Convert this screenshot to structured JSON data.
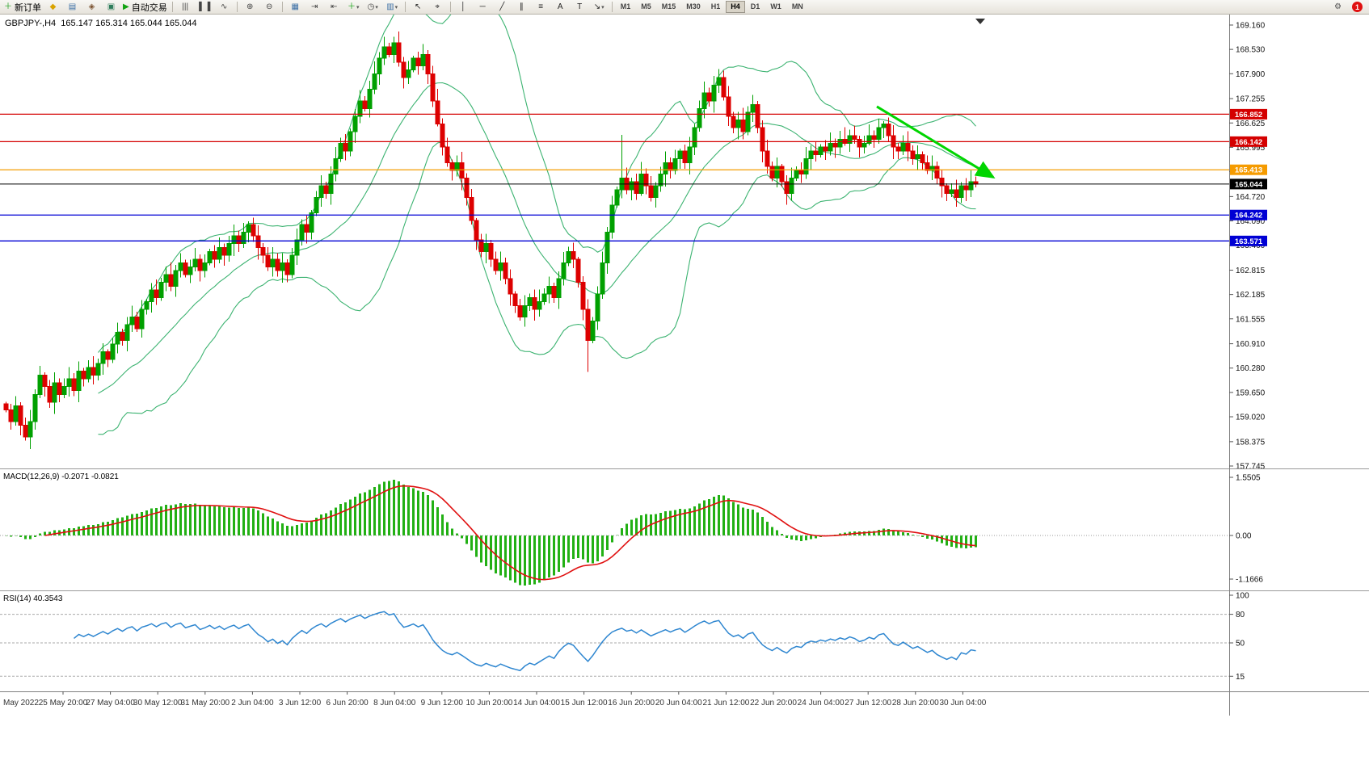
{
  "toolbar": {
    "new_order_label": "新订单",
    "autotrading_label": "自动交易",
    "active_timeframe": "H4",
    "timeframes": [
      "M1",
      "M5",
      "M15",
      "M30",
      "H1",
      "H4",
      "D1",
      "W1",
      "MN"
    ],
    "notification_count": "1",
    "buttons": [
      {
        "type": "icon",
        "name": "new-order-button",
        "icon": "new-order-icon",
        "glyph": "＋",
        "color": "#1a9e1a",
        "label": "新订单"
      },
      {
        "type": "icon",
        "name": "market-watch-button",
        "icon": "market-watch-icon",
        "glyph": "◆",
        "color": "#d9a300"
      },
      {
        "type": "icon",
        "name": "data-window-button",
        "icon": "data-window-icon",
        "glyph": "▤",
        "color": "#3a6ea5"
      },
      {
        "type": "icon",
        "name": "navigator-button",
        "icon": "navigator-icon",
        "glyph": "◈",
        "color": "#7a5230"
      },
      {
        "type": "icon",
        "name": "terminal-button",
        "icon": "terminal-icon",
        "glyph": "▣",
        "color": "#2e7d5b"
      },
      {
        "type": "icon",
        "name": "autotrading-button",
        "icon": "autotrading-play-icon",
        "glyph": "▶",
        "color": "#12a312",
        "label": "自动交易"
      },
      {
        "type": "sep"
      },
      {
        "type": "icon",
        "name": "bar-chart-button",
        "icon": "bar-chart-icon",
        "glyph": "|||",
        "color": "#444444"
      },
      {
        "type": "icon",
        "name": "candlestick-chart-button",
        "icon": "candlestick-chart-icon",
        "glyph": "▌▐",
        "color": "#444444"
      },
      {
        "type": "icon",
        "name": "line-chart-button",
        "icon": "line-chart-icon",
        "glyph": "∿",
        "color": "#444444"
      },
      {
        "type": "sep"
      },
      {
        "type": "icon",
        "name": "zoom-in-button",
        "icon": "zoom-in-icon",
        "glyph": "⊕",
        "color": "#444444"
      },
      {
        "type": "icon",
        "name": "zoom-out-button",
        "icon": "zoom-out-icon",
        "glyph": "⊖",
        "color": "#444444"
      },
      {
        "type": "sep"
      },
      {
        "type": "icon",
        "name": "tile-windows-button",
        "icon": "tile-windows-icon",
        "glyph": "▦",
        "color": "#3a6ea5"
      },
      {
        "type": "icon",
        "name": "auto-scroll-button",
        "icon": "auto-scroll-icon",
        "glyph": "⇥",
        "color": "#444444"
      },
      {
        "type": "icon",
        "name": "chart-shift-button",
        "icon": "chart-shift-icon",
        "glyph": "⇤",
        "color": "#444444"
      },
      {
        "type": "icon",
        "name": "indicators-button",
        "icon": "indicators-plus-icon",
        "glyph": "＋",
        "color": "#12a312",
        "caret": true
      },
      {
        "type": "icon",
        "name": "periods-button",
        "icon": "periods-clock-icon",
        "glyph": "◷",
        "color": "#444444",
        "caret": true
      },
      {
        "type": "icon",
        "name": "templates-button",
        "icon": "templates-icon",
        "glyph": "▥",
        "color": "#3a6ea5",
        "caret": true
      },
      {
        "type": "sep"
      },
      {
        "type": "icon",
        "name": "cursor-button",
        "icon": "cursor-icon",
        "glyph": "↖",
        "color": "#222222"
      },
      {
        "type": "icon",
        "name": "crosshair-button",
        "icon": "crosshair-icon",
        "glyph": "⌖",
        "color": "#222222"
      },
      {
        "type": "sep"
      },
      {
        "type": "icon",
        "name": "vertical-line-button",
        "icon": "vertical-line-icon",
        "glyph": "│",
        "color": "#222222"
      },
      {
        "type": "icon",
        "name": "horizontal-line-button",
        "icon": "horizontal-line-icon",
        "glyph": "─",
        "color": "#222222"
      },
      {
        "type": "icon",
        "name": "trendline-button",
        "icon": "trendline-icon",
        "glyph": "╱",
        "color": "#222222"
      },
      {
        "type": "icon",
        "name": "equidistant-channel-button",
        "icon": "channel-icon",
        "glyph": "∥",
        "color": "#222222"
      },
      {
        "type": "icon",
        "name": "fibonacci-button",
        "icon": "fibonacci-icon",
        "glyph": "≡",
        "color": "#222222"
      },
      {
        "type": "icon",
        "name": "text-button",
        "icon": "text-icon",
        "glyph": "A",
        "color": "#222222"
      },
      {
        "type": "icon",
        "name": "label-button",
        "icon": "label-icon",
        "glyph": "T",
        "color": "#222222"
      },
      {
        "type": "icon",
        "name": "arrows-button",
        "icon": "arrows-icon",
        "glyph": "↘",
        "color": "#222222",
        "caret": true
      },
      {
        "type": "sep"
      },
      {
        "type": "tf",
        "label": "M1"
      },
      {
        "type": "tf",
        "label": "M5"
      },
      {
        "type": "tf",
        "label": "M15"
      },
      {
        "type": "tf",
        "label": "M30"
      },
      {
        "type": "tf",
        "label": "H1"
      },
      {
        "type": "tf",
        "label": "H4"
      },
      {
        "type": "tf",
        "label": "D1"
      },
      {
        "type": "tf",
        "label": "W1"
      },
      {
        "type": "tf",
        "label": "MN"
      },
      {
        "type": "spacer"
      },
      {
        "type": "icon",
        "name": "settings-button",
        "icon": "gear-icon",
        "glyph": "⚙",
        "color": "#555555"
      },
      {
        "type": "badge",
        "name": "notification-badge",
        "label": "1"
      }
    ]
  },
  "chart": {
    "header": "GBPJPY-,H4  165.147 165.314 165.044 165.044",
    "symbol": "GBPJPY",
    "timeframe": "H4"
  },
  "colors": {
    "bull": "#00A000",
    "bear": "#DD0000",
    "bollinger": "#3CB371",
    "macd_hist": "#22B014",
    "macd_signal": "#E01010",
    "rsi": "#2E86D0",
    "trendline": "#00D500",
    "level_red": "#D40000",
    "level_blue": "#0000D4",
    "level_orange": "#F59B00",
    "current_price": "#000000"
  },
  "price_axis": {
    "ticks": [
      "169.160",
      "168.530",
      "167.900",
      "167.255",
      "166.625",
      "165.995",
      "165.370",
      "164.720",
      "164.090",
      "163.460",
      "162.815",
      "162.185",
      "161.555",
      "160.910",
      "160.280",
      "159.650",
      "159.020",
      "158.375",
      "157.745"
    ]
  },
  "time_axis": {
    "month_label": "May 2022",
    "x_start": 78,
    "x_step": 58.6,
    "labels": [
      "25 May 20:00",
      "27 May 04:00",
      "30 May 12:00",
      "31 May 20:00",
      "2 Jun 04:00",
      "3 Jun 12:00",
      "6 Jun 20:00",
      "8 Jun 04:00",
      "9 Jun 12:00",
      "10 Jun 20:00",
      "14 Jun 04:00",
      "15 Jun 12:00",
      "16 Jun 20:00",
      "20 Jun 04:00",
      "21 Jun 12:00",
      "22 Jun 20:00",
      "24 Jun 04:00",
      "27 Jun 12:00",
      "28 Jun 20:00",
      "30 Jun 04:00"
    ]
  },
  "chart_data": {
    "main": {
      "type": "candlestick",
      "symbol": "GBPJPY",
      "timeframe": "H4",
      "ohlc": {
        "open": 165.147,
        "high": 165.314,
        "low": 165.044,
        "close": 165.044
      },
      "ylim": [
        157.745,
        169.16
      ],
      "closes": [
        159.2,
        158.9,
        159.3,
        158.8,
        158.5,
        158.9,
        159.6,
        160.1,
        159.8,
        159.4,
        159.9,
        159.6,
        159.8,
        160.0,
        159.7,
        160.2,
        160.0,
        160.3,
        160.1,
        160.4,
        160.7,
        160.5,
        160.9,
        161.2,
        161.0,
        161.4,
        161.6,
        161.3,
        161.8,
        162.0,
        162.3,
        162.1,
        162.5,
        162.7,
        162.4,
        162.8,
        163.0,
        162.7,
        162.9,
        163.1,
        162.8,
        163.0,
        163.3,
        163.1,
        163.4,
        163.2,
        163.5,
        163.7,
        163.5,
        163.8,
        164.0,
        163.7,
        163.4,
        163.2,
        162.9,
        163.1,
        162.8,
        163.0,
        162.7,
        163.2,
        163.6,
        164.0,
        163.8,
        164.3,
        164.7,
        165.0,
        164.8,
        165.3,
        165.7,
        166.1,
        165.9,
        166.4,
        166.8,
        167.2,
        167.0,
        167.5,
        167.9,
        168.3,
        168.6,
        168.4,
        168.7,
        168.2,
        167.8,
        168.0,
        168.3,
        168.1,
        168.4,
        167.9,
        167.2,
        166.6,
        166.0,
        165.6,
        165.4,
        165.6,
        165.2,
        164.7,
        164.1,
        163.6,
        163.3,
        163.5,
        163.1,
        162.8,
        163.0,
        162.6,
        162.2,
        161.9,
        161.6,
        161.9,
        162.1,
        161.8,
        162.0,
        162.2,
        162.4,
        162.1,
        162.6,
        163.0,
        163.3,
        163.1,
        162.5,
        161.8,
        161.0,
        161.5,
        162.2,
        163.0,
        163.8,
        164.5,
        164.9,
        165.2,
        164.9,
        165.1,
        164.8,
        165.3,
        165.0,
        164.7,
        165.0,
        165.3,
        165.6,
        165.4,
        165.7,
        165.9,
        165.6,
        166.0,
        166.5,
        167.0,
        167.4,
        167.2,
        167.6,
        167.8,
        167.3,
        166.8,
        166.5,
        166.7,
        166.4,
        166.9,
        167.1,
        166.5,
        165.9,
        165.5,
        165.2,
        165.5,
        165.1,
        164.8,
        165.2,
        165.4,
        165.3,
        165.7,
        165.9,
        165.8,
        166.0,
        165.9,
        166.1,
        166.0,
        166.2,
        166.1,
        166.3,
        166.2,
        166.0,
        166.1,
        166.3,
        166.2,
        166.5,
        166.6,
        166.3,
        166.0,
        165.9,
        166.1,
        165.9,
        165.7,
        165.8,
        165.6,
        165.4,
        165.5,
        165.2,
        165.0,
        164.8,
        164.9,
        164.7,
        165.0,
        164.9,
        165.1,
        165.044
      ],
      "wick_overrides": {
        "4": {
          "low": 158.4
        },
        "80": {
          "high": 168.86
        },
        "120": {
          "low": 160.18
        },
        "127": {
          "high": 166.32
        },
        "147": {
          "high": 168.02
        }
      },
      "bollinger": {
        "period": 20,
        "deviation": 2
      },
      "levels": [
        {
          "price": 166.852,
          "color_key": "level_red"
        },
        {
          "price": 166.142,
          "color_key": "level_red"
        },
        {
          "price": 165.413,
          "color_key": "level_orange"
        },
        {
          "price": 165.044,
          "color_key": "current_price",
          "current": true
        },
        {
          "price": 164.242,
          "color_key": "level_blue"
        },
        {
          "price": 163.571,
          "color_key": "level_blue"
        }
      ],
      "trendline": {
        "i1": 180,
        "p1": 167.05,
        "i2": 204,
        "p2": 165.22
      }
    },
    "macd": {
      "type": "bar",
      "label": "MACD(12,26,9) -0.2071 -0.0821",
      "fast": 12,
      "slow": 26,
      "signal": 9,
      "value": -0.2071,
      "signal_value": -0.0821,
      "axis_labels": [
        "1.5505",
        "0.00",
        "-1.1666"
      ]
    },
    "rsi": {
      "type": "line",
      "label": "RSI(14) 40.3543",
      "period": 14,
      "value": 40.3543,
      "axis_labels": [
        "100",
        "80",
        "50",
        "15"
      ],
      "levels": [
        80,
        50,
        15
      ]
    }
  }
}
